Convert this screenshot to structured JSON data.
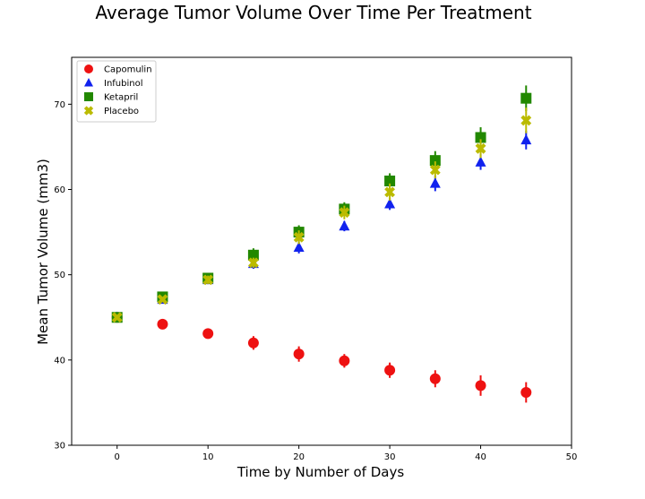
{
  "chart_data": {
    "type": "scatter",
    "title": "Average Tumor Volume Over Time Per Treatment",
    "xlabel": "Time by Number of Days",
    "ylabel": "Mean Tumor Volume (mm3)",
    "xlim": [
      -5,
      50
    ],
    "ylim": [
      30,
      75.5
    ],
    "xticks": [
      0,
      10,
      20,
      30,
      40,
      50
    ],
    "yticks": [
      30,
      40,
      50,
      60,
      70
    ],
    "grid": false,
    "legend_position": "top-left",
    "x": [
      0,
      5,
      10,
      15,
      20,
      25,
      30,
      35,
      40,
      45
    ],
    "series": [
      {
        "name": "Capomulin",
        "marker": "circle",
        "color": "#ee1111",
        "values": [
          45.0,
          44.2,
          43.1,
          42.0,
          40.7,
          39.9,
          38.8,
          37.8,
          37.0,
          36.2
        ],
        "errors": [
          0.0,
          0.4,
          0.6,
          0.8,
          0.9,
          0.8,
          0.9,
          1.0,
          1.2,
          1.2
        ]
      },
      {
        "name": "Infubinol",
        "marker": "triangle",
        "color": "#1122ee",
        "values": [
          45.0,
          47.1,
          49.4,
          51.3,
          53.2,
          55.7,
          58.3,
          60.7,
          63.2,
          65.8
        ],
        "errors": [
          0.0,
          0.3,
          0.5,
          0.6,
          0.7,
          0.6,
          0.7,
          0.9,
          0.9,
          1.1
        ]
      },
      {
        "name": "Ketapril",
        "marker": "square",
        "color": "#228800",
        "values": [
          45.0,
          47.4,
          49.6,
          52.3,
          55.0,
          57.7,
          61.0,
          63.4,
          66.1,
          70.7
        ],
        "errors": [
          0.0,
          0.3,
          0.5,
          0.8,
          0.8,
          0.8,
          0.9,
          1.1,
          1.2,
          1.5
        ]
      },
      {
        "name": "Placebo",
        "marker": "x",
        "color": "#bbbb00",
        "values": [
          45.0,
          47.1,
          49.4,
          51.4,
          54.4,
          57.3,
          59.7,
          62.3,
          64.8,
          68.1
        ],
        "errors": [
          0.0,
          0.2,
          0.5,
          0.6,
          0.8,
          0.8,
          1.0,
          1.0,
          1.1,
          1.5
        ]
      }
    ]
  }
}
